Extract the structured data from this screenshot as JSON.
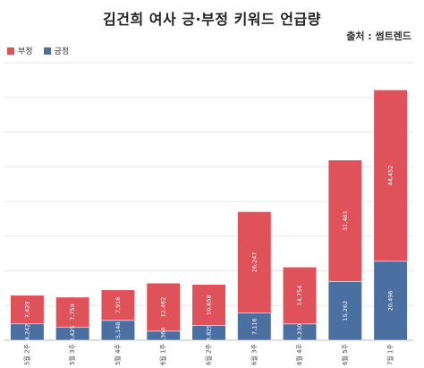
{
  "chart_data": {
    "type": "bar",
    "stacked": true,
    "title": "김건희 여사 긍·부정 키워드 언급량",
    "source": "출처 : 썸트렌드",
    "categories": [
      "5월 2주",
      "5월 3주",
      "5월 4주",
      "6월 1주",
      "6월 2주",
      "6월 3주",
      "6월 4주",
      "6월 5주",
      "7월 1주"
    ],
    "series": [
      {
        "name": "긍정",
        "color": "#4a6fa0",
        "values": [
          4242,
          3425,
          5148,
          2364,
          3825,
          7116,
          4230,
          15262,
          20496
        ]
      },
      {
        "name": "부정",
        "color": "#e0525a",
        "values": [
          7429,
          7759,
          7916,
          12462,
          10658,
          26247,
          14754,
          31481,
          44452
        ]
      }
    ],
    "value_labels": {
      "긍정": [
        "4,242",
        "3,425",
        "5,148",
        "2,364",
        "3,825",
        "7,116",
        "4,230",
        "15,262",
        "20,496"
      ],
      "부정": [
        "7,429",
        "7,759",
        "7,916",
        "12,462",
        "10,658",
        "26,247",
        "14,754",
        "31,481",
        "44,452"
      ]
    },
    "legend_position": "top-left",
    "grid": true,
    "ylim": [
      0,
      72000
    ]
  }
}
